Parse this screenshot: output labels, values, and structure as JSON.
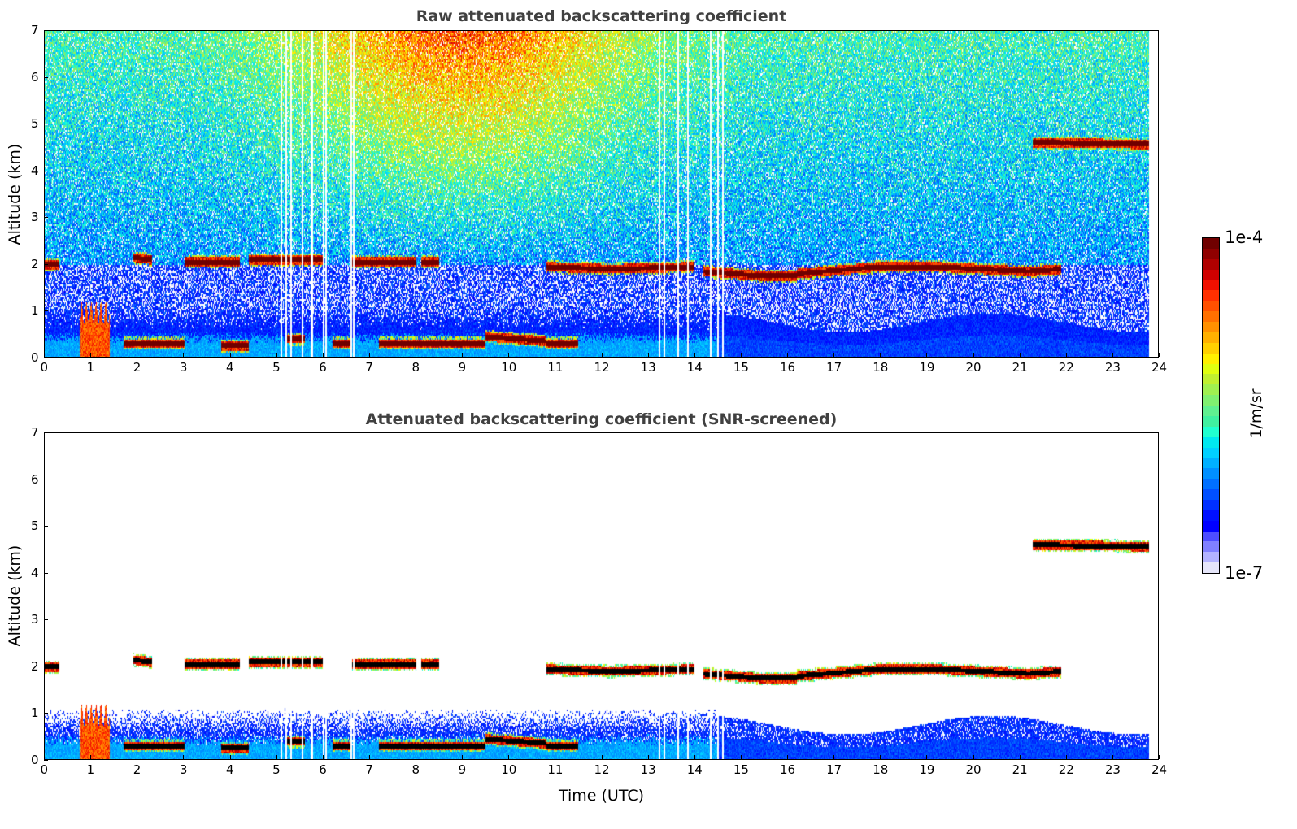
{
  "chart_data": [
    {
      "type": "heatmap",
      "title": "Raw attenuated backscattering coefficient",
      "xlabel": "",
      "ylabel": "Altitude (km)",
      "xlim": [
        0,
        24
      ],
      "ylim": [
        0,
        7
      ],
      "xticks": [
        "0",
        "1",
        "2",
        "3",
        "4",
        "5",
        "6",
        "7",
        "8",
        "9",
        "10",
        "11",
        "12",
        "13",
        "14",
        "15",
        "16",
        "17",
        "18",
        "19",
        "20",
        "21",
        "22",
        "23",
        "24"
      ],
      "yticks": [
        "0",
        "1",
        "2",
        "3",
        "4",
        "5",
        "6",
        "7"
      ],
      "screened": false
    },
    {
      "type": "heatmap",
      "title": "Attenuated backscattering coefficient (SNR-screened)",
      "xlabel": "Time (UTC)",
      "ylabel": "Altitude (km)",
      "xlim": [
        0,
        24
      ],
      "ylim": [
        0,
        7
      ],
      "xticks": [
        "0",
        "1",
        "2",
        "3",
        "4",
        "5",
        "6",
        "7",
        "8",
        "9",
        "10",
        "11",
        "12",
        "13",
        "14",
        "15",
        "16",
        "17",
        "18",
        "19",
        "20",
        "21",
        "22",
        "23",
        "24"
      ],
      "yticks": [
        "0",
        "1",
        "2",
        "3",
        "4",
        "5",
        "6",
        "7"
      ],
      "screened": true
    }
  ],
  "data_end_time": 23.8,
  "missing_profiles": [
    5.1,
    5.2,
    5.3,
    5.55,
    5.75,
    6.0,
    6.05,
    6.6,
    6.65,
    13.25,
    13.35,
    13.65,
    13.85,
    14.35,
    14.5,
    14.62
  ],
  "cloud_layers": [
    {
      "t": [
        0,
        0.3
      ],
      "alt": [
        2.0,
        2.0
      ]
    },
    {
      "t": [
        1.9,
        2.3
      ],
      "alt": [
        2.15,
        2.1
      ]
    },
    {
      "t": [
        3.0,
        4.2
      ],
      "alt": [
        2.05,
        2.05
      ]
    },
    {
      "t": [
        4.4,
        6.0
      ],
      "alt": [
        2.1,
        2.1
      ]
    },
    {
      "t": [
        6.6,
        8.0
      ],
      "alt": [
        2.05,
        2.05
      ]
    },
    {
      "t": [
        8.1,
        8.5
      ],
      "alt": [
        2.05,
        2.05
      ]
    },
    {
      "t": [
        10.8,
        12.2
      ],
      "alt": [
        1.95,
        1.9
      ]
    },
    {
      "t": [
        12.2,
        14.0
      ],
      "alt": [
        1.9,
        1.95
      ]
    },
    {
      "t": [
        14.2,
        15.5
      ],
      "alt": [
        1.85,
        1.75
      ]
    },
    {
      "t": [
        15.5,
        16.2
      ],
      "alt": [
        1.75,
        1.75
      ]
    },
    {
      "t": [
        16.2,
        18.0
      ],
      "alt": [
        1.8,
        1.95
      ]
    },
    {
      "t": [
        18.0,
        19.2
      ],
      "alt": [
        1.95,
        1.95
      ]
    },
    {
      "t": [
        19.2,
        21.2
      ],
      "alt": [
        1.95,
        1.85
      ]
    },
    {
      "t": [
        21.2,
        21.9
      ],
      "alt": [
        1.85,
        1.9
      ]
    },
    {
      "t": [
        21.3,
        23.8
      ],
      "alt": [
        4.62,
        4.58
      ]
    },
    {
      "t": [
        1.7,
        2.5
      ],
      "alt": [
        0.3,
        0.3
      ]
    },
    {
      "t": [
        2.5,
        3.0
      ],
      "alt": [
        0.3,
        0.3
      ]
    },
    {
      "t": [
        3.8,
        4.4
      ],
      "alt": [
        0.25,
        0.25
      ]
    },
    {
      "t": [
        5.2,
        5.6
      ],
      "alt": [
        0.4,
        0.4
      ]
    },
    {
      "t": [
        6.2,
        6.6
      ],
      "alt": [
        0.3,
        0.3
      ]
    },
    {
      "t": [
        7.2,
        8.5
      ],
      "alt": [
        0.3,
        0.3
      ]
    },
    {
      "t": [
        8.5,
        9.5
      ],
      "alt": [
        0.3,
        0.3
      ]
    },
    {
      "t": [
        9.5,
        10.8
      ],
      "alt": [
        0.45,
        0.35
      ]
    },
    {
      "t": [
        10.8,
        11.5
      ],
      "alt": [
        0.3,
        0.3
      ]
    }
  ],
  "precipitation": [
    {
      "t": [
        0.75,
        1.4
      ],
      "alt_top": 1.2
    }
  ],
  "colorbar": {
    "label": "1/m/sr",
    "max_label": "1e-4",
    "min_label": "1e-7",
    "colors": [
      "#e6e6fa",
      "#b3b3ff",
      "#8080ff",
      "#4d4dff",
      "#0000ff",
      "#0010ff",
      "#0030ff",
      "#0050ff",
      "#0070ff",
      "#0090ff",
      "#00b0ff",
      "#00d0ff",
      "#00e8f0",
      "#20ffd0",
      "#40f0a0",
      "#60f090",
      "#80f070",
      "#a0f050",
      "#c0f030",
      "#e0ff10",
      "#fff000",
      "#ffd000",
      "#ffb000",
      "#ff9000",
      "#ff7000",
      "#ff5000",
      "#ff3000",
      "#f01000",
      "#d00000",
      "#b00000",
      "#900000",
      "#700000"
    ]
  }
}
